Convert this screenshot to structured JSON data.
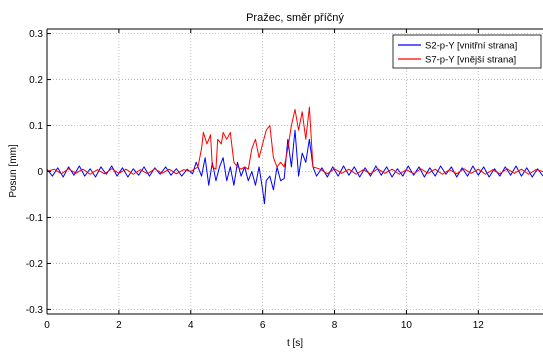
{
  "chart_data": {
    "type": "line",
    "title": "Pražec, směr příčný",
    "xlabel": "t [s]",
    "ylabel": "Posun [mm]",
    "xlim": [
      0,
      13.8
    ],
    "ylim": [
      -0.31,
      0.31
    ],
    "xticks": [
      0,
      2,
      4,
      6,
      8,
      10,
      12
    ],
    "yticks": [
      -0.3,
      -0.2,
      -0.1,
      0,
      0.1,
      0.2,
      0.3
    ],
    "xtick_labels": [
      "0",
      "2",
      "4",
      "6",
      "8",
      "10",
      "12"
    ],
    "ytick_labels": [
      "-0.3",
      "-0.2",
      "-0.1",
      "0",
      "0.1",
      "0.2",
      "0.3"
    ],
    "grid": true,
    "legend_position": "top-right",
    "series": [
      {
        "name": "S2-p-Y [vnitřní strana]",
        "color": "#0000ff",
        "x": [
          0,
          0.15,
          0.3,
          0.45,
          0.6,
          0.75,
          0.9,
          1.05,
          1.2,
          1.35,
          1.5,
          1.65,
          1.8,
          1.95,
          2.1,
          2.25,
          2.4,
          2.55,
          2.7,
          2.85,
          3.0,
          3.15,
          3.3,
          3.45,
          3.6,
          3.75,
          3.9,
          4.05,
          4.15,
          4.3,
          4.4,
          4.5,
          4.6,
          4.7,
          4.8,
          4.9,
          5.0,
          5.1,
          5.2,
          5.3,
          5.4,
          5.5,
          5.6,
          5.7,
          5.8,
          5.9,
          6.0,
          6.05,
          6.1,
          6.2,
          6.3,
          6.4,
          6.5,
          6.6,
          6.7,
          6.8,
          6.9,
          7.0,
          7.1,
          7.2,
          7.3,
          7.4,
          7.5,
          7.65,
          7.8,
          7.95,
          8.1,
          8.25,
          8.4,
          8.55,
          8.7,
          8.85,
          9.0,
          9.15,
          9.3,
          9.45,
          9.6,
          9.75,
          9.9,
          10.05,
          10.2,
          10.35,
          10.5,
          10.65,
          10.8,
          10.95,
          11.1,
          11.25,
          11.4,
          11.55,
          11.7,
          11.85,
          12.0,
          12.15,
          12.3,
          12.45,
          12.6,
          12.75,
          12.9,
          13.05,
          13.2,
          13.35,
          13.5,
          13.65,
          13.8
        ],
        "y": [
          0.005,
          -0.01,
          0.008,
          -0.012,
          0.01,
          -0.008,
          0.012,
          -0.01,
          0.006,
          -0.012,
          0.01,
          -0.006,
          0.012,
          -0.01,
          0.008,
          -0.012,
          0.006,
          -0.008,
          0.01,
          -0.01,
          0.008,
          -0.006,
          0.01,
          -0.008,
          0.006,
          -0.01,
          0.005,
          -0.005,
          0.02,
          -0.01,
          0.03,
          -0.03,
          0.02,
          -0.02,
          0.01,
          0.03,
          -0.02,
          0.01,
          -0.03,
          0.02,
          -0.01,
          0.01,
          -0.02,
          0.0,
          -0.03,
          0.01,
          -0.04,
          -0.07,
          -0.02,
          -0.01,
          -0.04,
          0.01,
          -0.02,
          -0.015,
          0.07,
          0.01,
          0.09,
          -0.01,
          0.04,
          0.02,
          0.07,
          0.01,
          -0.01,
          0.008,
          -0.012,
          0.01,
          -0.01,
          0.012,
          -0.008,
          0.01,
          -0.012,
          0.008,
          -0.01,
          0.012,
          -0.008,
          0.01,
          -0.012,
          0.006,
          -0.01,
          0.012,
          -0.008,
          0.01,
          -0.012,
          0.008,
          -0.01,
          0.012,
          -0.006,
          0.01,
          -0.012,
          0.008,
          -0.01,
          0.012,
          -0.008,
          0.01,
          -0.012,
          0.006,
          -0.01,
          0.01,
          -0.008,
          0.012,
          -0.01,
          0.008,
          -0.012,
          0.006,
          -0.01
        ]
      },
      {
        "name": "S7-p-Y [vnější strana]",
        "color": "#ff0000",
        "x": [
          0,
          0.2,
          0.4,
          0.6,
          0.8,
          1.0,
          1.2,
          1.4,
          1.6,
          1.8,
          2.0,
          2.2,
          2.4,
          2.6,
          2.8,
          3.0,
          3.2,
          3.4,
          3.6,
          3.8,
          4.0,
          4.2,
          4.3,
          4.35,
          4.45,
          4.55,
          4.6,
          4.7,
          4.75,
          4.85,
          4.9,
          5.0,
          5.1,
          5.2,
          5.3,
          5.4,
          5.5,
          5.6,
          5.7,
          5.8,
          5.9,
          6.0,
          6.1,
          6.2,
          6.3,
          6.4,
          6.5,
          6.6,
          6.7,
          6.8,
          6.9,
          7.0,
          7.1,
          7.2,
          7.3,
          7.4,
          7.6,
          7.8,
          8.0,
          8.2,
          8.4,
          8.6,
          8.8,
          9.0,
          9.2,
          9.4,
          9.6,
          9.8,
          10.0,
          10.2,
          10.4,
          10.6,
          10.8,
          11.0,
          11.2,
          11.4,
          11.6,
          11.8,
          12.0,
          12.2,
          12.4,
          12.6,
          12.8,
          13.0,
          13.2,
          13.4,
          13.6,
          13.8
        ],
        "y": [
          0.0,
          0.005,
          -0.005,
          0.006,
          -0.004,
          0.005,
          -0.006,
          0.004,
          -0.005,
          0.006,
          -0.004,
          0.005,
          -0.006,
          0.004,
          -0.005,
          0.006,
          -0.004,
          0.005,
          -0.005,
          0.004,
          0.0,
          0.01,
          0.05,
          0.085,
          0.06,
          0.08,
          0.01,
          0.005,
          0.07,
          0.06,
          0.085,
          0.07,
          0.085,
          0.02,
          0.01,
          0.005,
          0.01,
          0.005,
          0.05,
          0.07,
          0.03,
          0.06,
          0.09,
          0.1,
          0.03,
          0.01,
          0.02,
          0.01,
          0.05,
          0.1,
          0.135,
          0.09,
          0.13,
          0.07,
          0.14,
          0.01,
          0.005,
          -0.005,
          0.006,
          -0.004,
          0.005,
          -0.006,
          0.004,
          -0.005,
          0.006,
          -0.004,
          0.005,
          -0.006,
          0.004,
          -0.005,
          0.006,
          -0.004,
          0.005,
          -0.006,
          0.004,
          -0.005,
          0.006,
          -0.004,
          0.005,
          -0.006,
          0.004,
          -0.005,
          0.006,
          -0.004,
          0.005,
          -0.006,
          0.004,
          0.0
        ]
      }
    ]
  }
}
